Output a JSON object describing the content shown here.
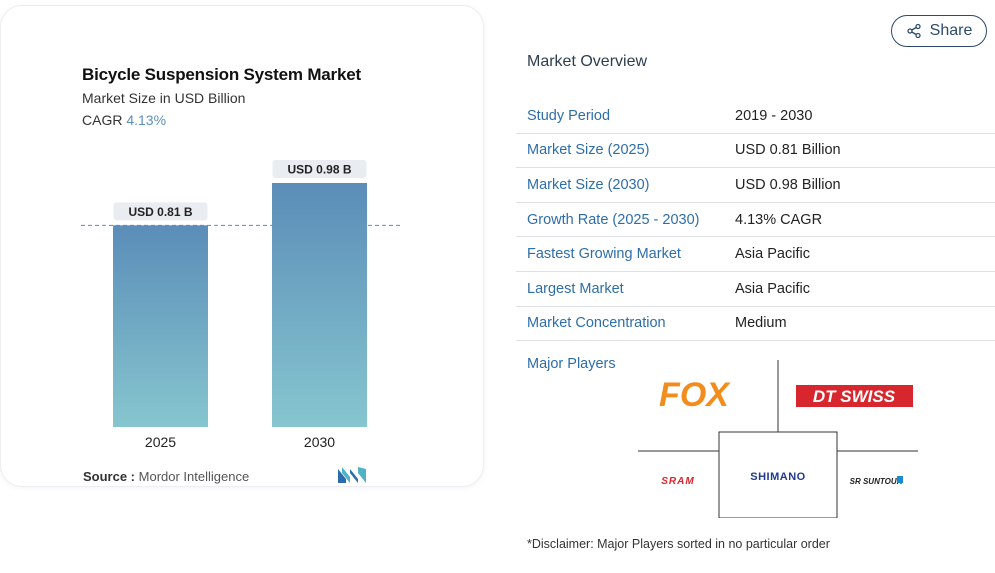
{
  "chart": {
    "title": "Bicycle Suspension System Market",
    "subtitle": "Market Size in USD Billion",
    "cagr_label": "CAGR",
    "cagr_value": "4.13%",
    "source_label": "Source :",
    "source_value": "Mordor Intelligence",
    "colors": {
      "bar_top": "#5b8db8",
      "bar_bottom": "#86c6cf",
      "dash": "#5b8db8",
      "label_bg": "#e9edf1"
    }
  },
  "chart_data": {
    "type": "bar",
    "categories": [
      "2025",
      "2030"
    ],
    "values": [
      0.81,
      0.98
    ],
    "data_labels": [
      "USD 0.81 B",
      "USD 0.98 B"
    ],
    "title": "Bicycle Suspension System Market",
    "subtitle": "Market Size in USD Billion",
    "ylim": [
      0,
      0.98
    ],
    "reference_line": 0.81,
    "grid": false
  },
  "share": {
    "label": "Share",
    "icon": "share-icon"
  },
  "overview": {
    "title": "Market Overview",
    "rows": [
      {
        "key": "Study Period",
        "value": "2019 - 2030"
      },
      {
        "key": "Market Size (2025)",
        "value": "USD 0.81 Billion"
      },
      {
        "key": "Market Size (2030)",
        "value": "USD 0.98 Billion"
      },
      {
        "key": "Growth Rate (2025 - 2030)",
        "value": "4.13% CAGR"
      },
      {
        "key": "Fastest Growing Market",
        "value": "Asia Pacific"
      },
      {
        "key": "Largest Market",
        "value": "Asia Pacific"
      },
      {
        "key": "Market Concentration",
        "value": "Medium"
      }
    ],
    "players_label": "Major Players",
    "players": [
      "FOX",
      "DT SWISS",
      "SRAM",
      "SHIMANO",
      "SR SUNTOUR"
    ],
    "disclaimer": "*Disclaimer: Major Players sorted in no particular order"
  }
}
